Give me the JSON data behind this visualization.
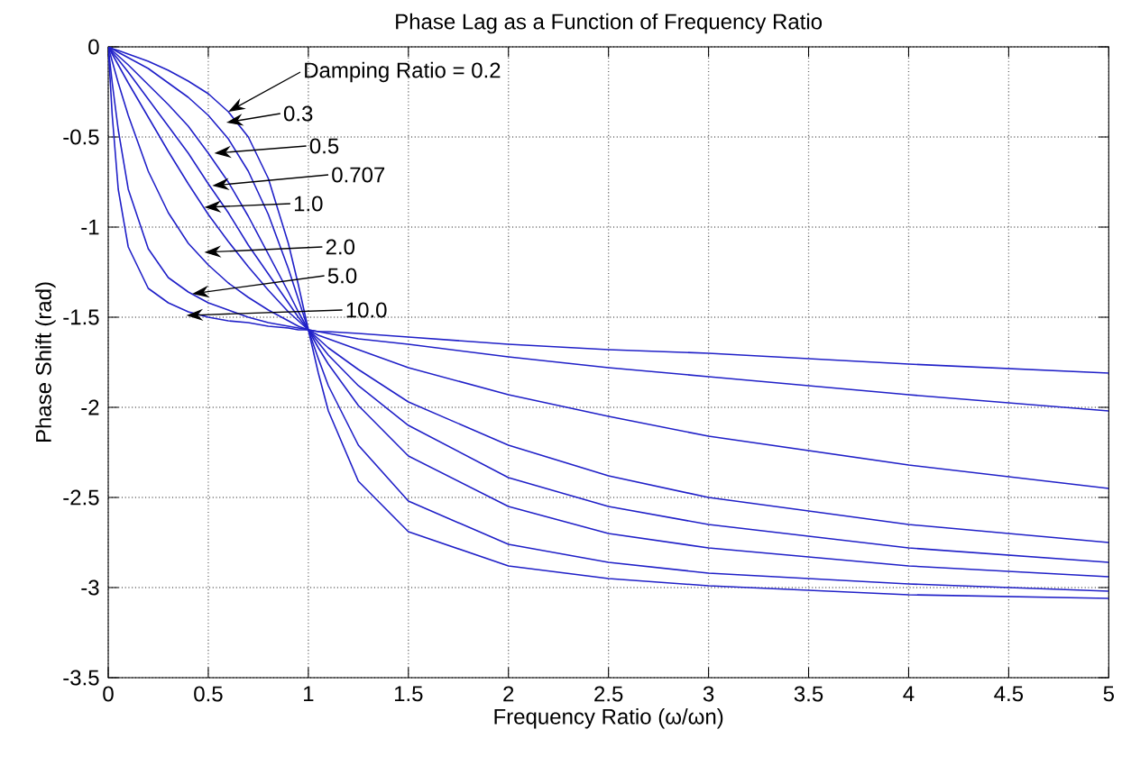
{
  "chart_data": {
    "type": "line",
    "title": "Phase Lag as a Function of Frequency Ratio",
    "xlabel": "Frequency Ratio (ω/ωn)",
    "ylabel": "Phase Shift (rad)",
    "x": [
      0,
      0.02,
      0.05,
      0.1,
      0.2,
      0.3,
      0.4,
      0.5,
      0.6,
      0.7,
      0.8,
      0.9,
      0.95,
      1,
      1.05,
      1.1,
      1.25,
      1.5,
      2,
      2.5,
      3,
      4,
      5
    ],
    "series": [
      {
        "color": "#2020c8",
        "values": [
          0,
          -0.01,
          -0.02,
          -0.04,
          -0.08,
          -0.13,
          -0.19,
          -0.26,
          -0.36,
          -0.5,
          -0.73,
          -1.09,
          -1.32,
          -1.57,
          -1.81,
          -2.02,
          -2.41,
          -2.69,
          -2.88,
          -2.95,
          -2.99,
          -3.04,
          -3.06
        ]
      },
      {
        "color": "#2020c8",
        "values": [
          0,
          -0.01,
          -0.03,
          -0.06,
          -0.12,
          -0.2,
          -0.28,
          -0.38,
          -0.51,
          -0.69,
          -0.93,
          -1.23,
          -1.4,
          -1.57,
          -1.73,
          -1.88,
          -2.21,
          -2.52,
          -2.76,
          -2.86,
          -2.92,
          -2.98,
          -3.02
        ]
      },
      {
        "color": "#2020c8",
        "values": [
          0,
          -0.02,
          -0.05,
          -0.1,
          -0.21,
          -0.32,
          -0.44,
          -0.59,
          -0.75,
          -0.94,
          -1.15,
          -1.36,
          -1.47,
          -1.57,
          -1.67,
          -1.76,
          -1.99,
          -2.27,
          -2.55,
          -2.7,
          -2.78,
          -2.88,
          -2.94
        ]
      },
      {
        "color": "#2020c8",
        "values": [
          0,
          -0.03,
          -0.07,
          -0.14,
          -0.29,
          -0.44,
          -0.59,
          -0.76,
          -0.92,
          -1.1,
          -1.26,
          -1.42,
          -1.5,
          -1.57,
          -1.64,
          -1.71,
          -1.88,
          -2.1,
          -2.39,
          -2.55,
          -2.65,
          -2.78,
          -2.86
        ]
      },
      {
        "color": "#2020c8",
        "values": [
          0,
          -0.04,
          -0.1,
          -0.2,
          -0.39,
          -0.58,
          -0.76,
          -0.93,
          -1.08,
          -1.22,
          -1.35,
          -1.47,
          -1.52,
          -1.57,
          -1.62,
          -1.67,
          -1.79,
          -1.97,
          -2.21,
          -2.38,
          -2.5,
          -2.65,
          -2.75
        ]
      },
      {
        "color": "#2020c8",
        "values": [
          0,
          -0.08,
          -0.2,
          -0.38,
          -0.69,
          -0.92,
          -1.09,
          -1.21,
          -1.31,
          -1.39,
          -1.46,
          -1.52,
          -1.55,
          -1.57,
          -1.6,
          -1.62,
          -1.68,
          -1.78,
          -1.93,
          -2.05,
          -2.16,
          -2.32,
          -2.45
        ]
      },
      {
        "color": "#2020c8",
        "values": [
          0,
          -0.2,
          -0.46,
          -0.79,
          -1.12,
          -1.28,
          -1.36,
          -1.42,
          -1.46,
          -1.5,
          -1.53,
          -1.55,
          -1.56,
          -1.57,
          -1.58,
          -1.59,
          -1.62,
          -1.65,
          -1.72,
          -1.78,
          -1.83,
          -1.93,
          -2.02
        ]
      },
      {
        "color": "#2020c8",
        "values": [
          0,
          -0.38,
          -0.79,
          -1.11,
          -1.34,
          -1.42,
          -1.47,
          -1.5,
          -1.52,
          -1.53,
          -1.55,
          -1.56,
          -1.57,
          -1.57,
          -1.58,
          -1.58,
          -1.59,
          -1.61,
          -1.65,
          -1.68,
          -1.7,
          -1.76,
          -1.81
        ]
      }
    ],
    "xlim": [
      0,
      5
    ],
    "ylim": [
      -3.5,
      0
    ],
    "xticks": [
      0,
      0.5,
      1,
      1.5,
      2,
      2.5,
      3,
      3.5,
      4,
      4.5,
      5
    ],
    "yticks": [
      -3.5,
      -3,
      -2.5,
      -2,
      -1.5,
      -1,
      -0.5,
      0
    ],
    "grid": true,
    "line_style": "solid",
    "marker": "none",
    "annotations": [
      {
        "text": "Damping Ratio = 0.2",
        "x": 0.6,
        "y": -0.36
      },
      {
        "text": "0.3",
        "x": 0.59,
        "y": -0.42
      },
      {
        "text": "0.5",
        "x": 0.53,
        "y": -0.59
      },
      {
        "text": "0.707",
        "x": 0.52,
        "y": -0.77
      },
      {
        "text": "1.0",
        "x": 0.48,
        "y": -0.89
      },
      {
        "text": "2.0",
        "x": 0.48,
        "y": -1.14
      },
      {
        "text": "5.0",
        "x": 0.42,
        "y": -1.37
      },
      {
        "text": "10.0",
        "x": 0.39,
        "y": -1.49
      }
    ]
  }
}
